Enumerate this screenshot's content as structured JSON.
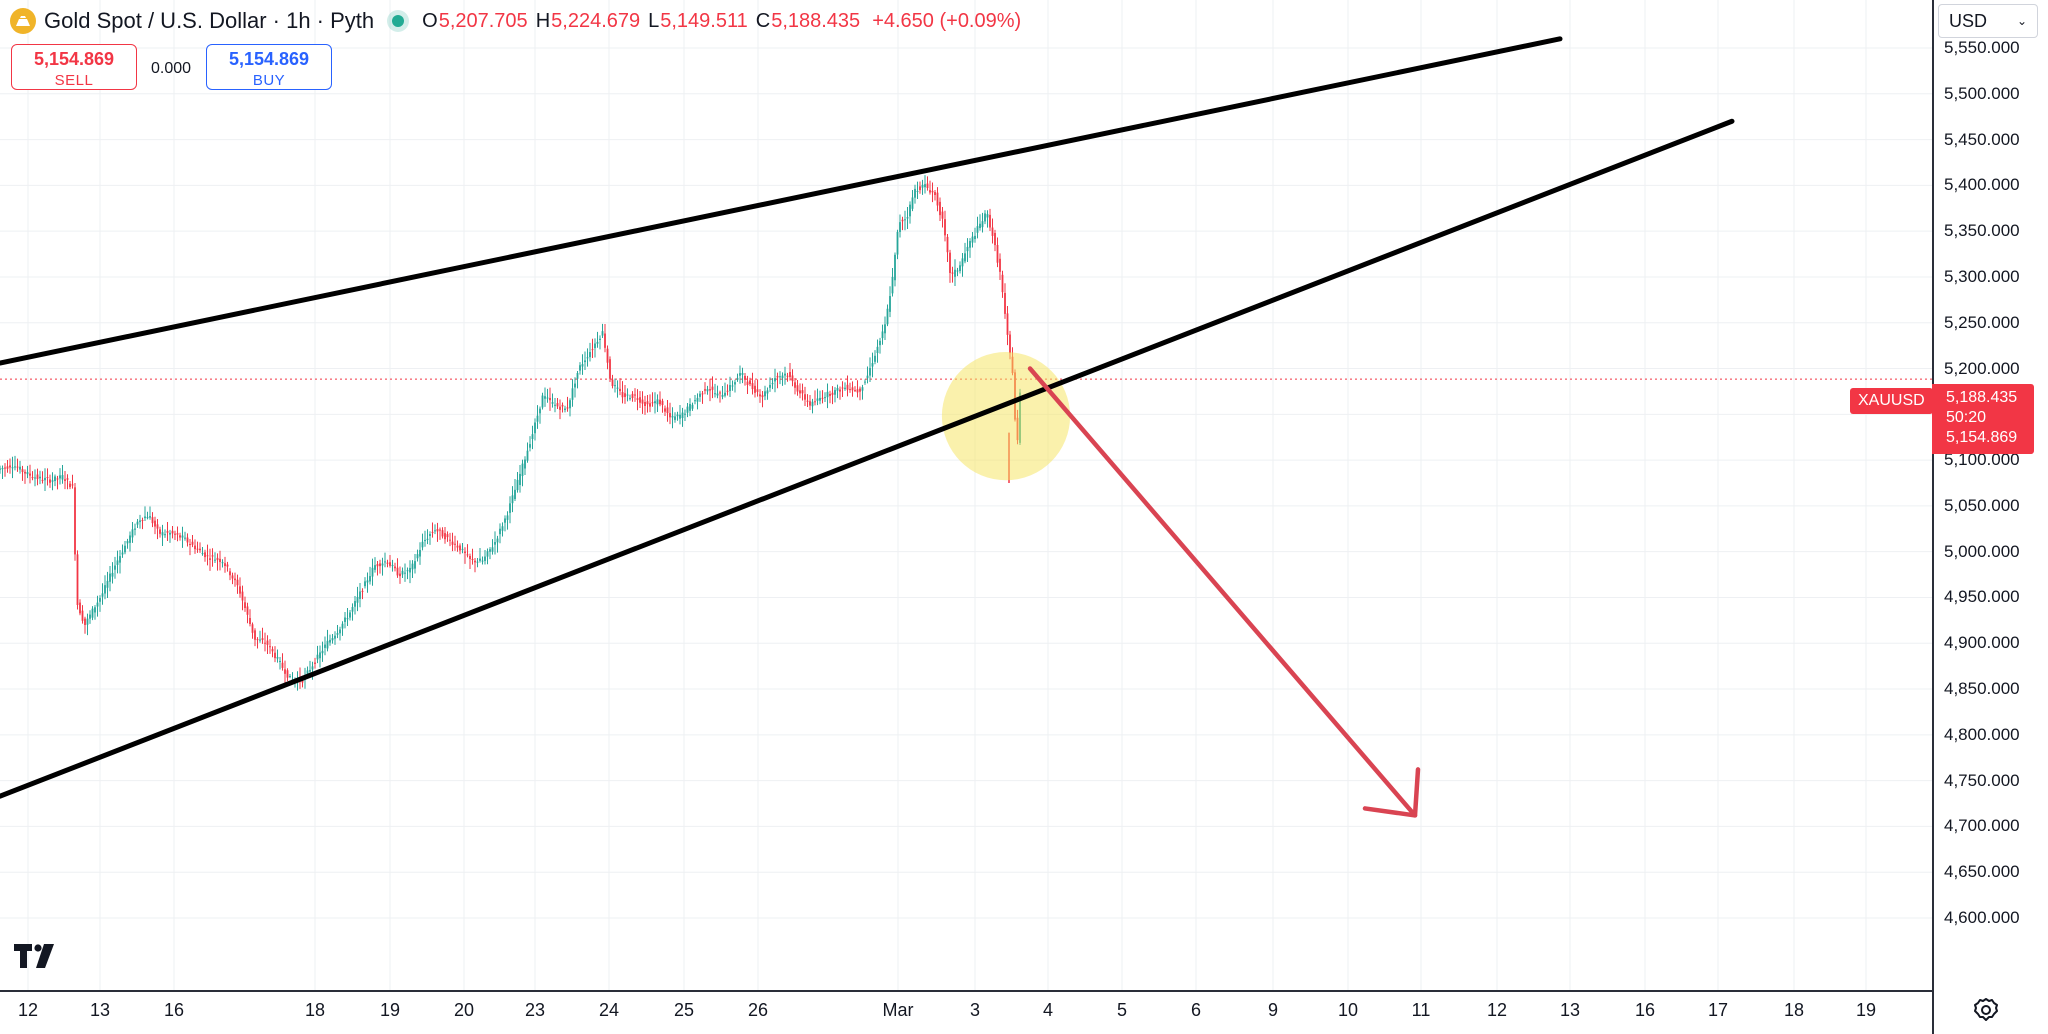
{
  "header": {
    "title": "Gold Spot / U.S. Dollar · 1h · Pyth",
    "open_label": "O",
    "open_value": "5,207.705",
    "high_label": "H",
    "high_value": "5,224.679",
    "low_label": "L",
    "low_value": "5,149.511",
    "close_label": "C",
    "close_value": "5,188.435",
    "change": "+4.650 (+0.09%)"
  },
  "trade": {
    "sell_price": "5,154.869",
    "sell_label": "SELL",
    "spread": "0.000",
    "buy_price": "5,154.869",
    "buy_label": "BUY"
  },
  "currency_selector": {
    "value": "USD"
  },
  "price_tag": {
    "symbol": "XAUUSD",
    "last_price": "5,188.435",
    "countdown": "50:20",
    "bid_price": "5,154.869"
  },
  "colors": {
    "up": "#26a69a",
    "down": "#f23645",
    "annotation_arrow": "#d94452",
    "highlight": "#f5e35a"
  },
  "icons": {
    "logo": "gold-coin-icon",
    "status": "market-open-dot-icon",
    "brand": "tradingview-logo-icon",
    "settings": "gear-icon"
  },
  "chart_data": {
    "type": "candlestick",
    "y_axis": {
      "ylim": [
        4580,
        5580
      ],
      "ticks": [
        "4,600.000",
        "4,650.000",
        "4,700.000",
        "4,750.000",
        "4,800.000",
        "4,850.000",
        "4,900.000",
        "4,950.000",
        "5,000.000",
        "5,050.000",
        "5,100.000",
        "5,150.000",
        "5,200.000",
        "5,250.000",
        "5,300.000",
        "5,350.000",
        "5,400.000",
        "5,450.000",
        "5,500.000",
        "5,550.000"
      ]
    },
    "x_axis": {
      "ticks": [
        "12",
        "13",
        "16",
        "18",
        "19",
        "20",
        "23",
        "24",
        "25",
        "26",
        "Mar",
        "3",
        "4",
        "5",
        "6",
        "9",
        "10",
        "11",
        "12",
        "13",
        "16",
        "17",
        "18",
        "19"
      ]
    },
    "price_path": [
      [
        0,
        5090
      ],
      [
        14,
        5095
      ],
      [
        28,
        5085
      ],
      [
        40,
        5080
      ],
      [
        52,
        5078
      ],
      [
        64,
        5082
      ],
      [
        74,
        5070
      ],
      [
        78,
        4945
      ],
      [
        86,
        4920
      ],
      [
        96,
        4940
      ],
      [
        104,
        4955
      ],
      [
        116,
        4985
      ],
      [
        128,
        5010
      ],
      [
        140,
        5035
      ],
      [
        150,
        5040
      ],
      [
        160,
        5020
      ],
      [
        172,
        5020
      ],
      [
        184,
        5015
      ],
      [
        196,
        5005
      ],
      [
        208,
        4995
      ],
      [
        224,
        4990
      ],
      [
        240,
        4960
      ],
      [
        256,
        4905
      ],
      [
        268,
        4900
      ],
      [
        280,
        4880
      ],
      [
        292,
        4860
      ],
      [
        304,
        4860
      ],
      [
        316,
        4880
      ],
      [
        328,
        4900
      ],
      [
        340,
        4915
      ],
      [
        352,
        4935
      ],
      [
        364,
        4960
      ],
      [
        376,
        4985
      ],
      [
        388,
        4990
      ],
      [
        400,
        4975
      ],
      [
        412,
        4980
      ],
      [
        424,
        5010
      ],
      [
        436,
        5025
      ],
      [
        448,
        5015
      ],
      [
        460,
        5005
      ],
      [
        472,
        4990
      ],
      [
        484,
        4990
      ],
      [
        496,
        5010
      ],
      [
        508,
        5040
      ],
      [
        520,
        5080
      ],
      [
        534,
        5130
      ],
      [
        544,
        5170
      ],
      [
        556,
        5160
      ],
      [
        568,
        5155
      ],
      [
        580,
        5200
      ],
      [
        592,
        5220
      ],
      [
        604,
        5240
      ],
      [
        612,
        5185
      ],
      [
        624,
        5170
      ],
      [
        636,
        5170
      ],
      [
        648,
        5160
      ],
      [
        660,
        5165
      ],
      [
        672,
        5145
      ],
      [
        684,
        5150
      ],
      [
        696,
        5165
      ],
      [
        708,
        5180
      ],
      [
        720,
        5170
      ],
      [
        732,
        5180
      ],
      [
        742,
        5195
      ],
      [
        752,
        5180
      ],
      [
        764,
        5170
      ],
      [
        776,
        5190
      ],
      [
        788,
        5195
      ],
      [
        800,
        5175
      ],
      [
        812,
        5160
      ],
      [
        824,
        5170
      ],
      [
        836,
        5175
      ],
      [
        848,
        5180
      ],
      [
        860,
        5175
      ],
      [
        868,
        5190
      ],
      [
        876,
        5215
      ],
      [
        886,
        5245
      ],
      [
        894,
        5300
      ],
      [
        900,
        5360
      ],
      [
        908,
        5365
      ],
      [
        916,
        5395
      ],
      [
        926,
        5400
      ],
      [
        936,
        5390
      ],
      [
        944,
        5360
      ],
      [
        952,
        5300
      ],
      [
        960,
        5310
      ],
      [
        970,
        5335
      ],
      [
        980,
        5355
      ],
      [
        988,
        5370
      ],
      [
        994,
        5345
      ],
      [
        1002,
        5300
      ],
      [
        1008,
        5240
      ],
      [
        1014,
        5195
      ],
      [
        1018,
        5105
      ],
      [
        1022,
        5188
      ]
    ],
    "trendlines": [
      {
        "from": [
          0,
          5206
        ],
        "to": [
          1560,
          5560
        ]
      },
      {
        "from": [
          0,
          4733
        ],
        "to": [
          1732,
          5470
        ]
      }
    ],
    "projection_arrow": {
      "from": [
        1030,
        5200
      ],
      "to": [
        1415,
        4712
      ]
    },
    "highlight_circle": {
      "center": [
        1006,
        5148
      ],
      "radius_price": 70
    },
    "last_price_line": 5188.435,
    "title": "",
    "xlabel": "",
    "ylabel": ""
  }
}
